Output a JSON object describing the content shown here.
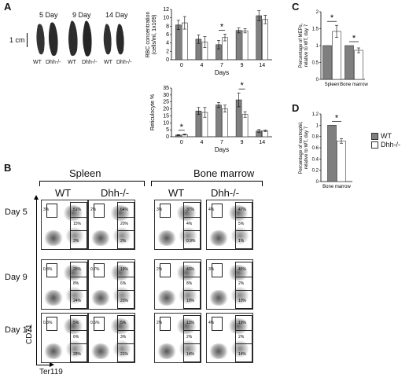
{
  "panels": [
    "A",
    "B",
    "C",
    "D"
  ],
  "spleen_photo": {
    "scale_label": "1 cm",
    "days": [
      "5 Day",
      "9 Day",
      "14 Day"
    ],
    "genotypes": [
      "WT",
      "Dhh-/-"
    ]
  },
  "chart_data": [
    {
      "id": "rbc",
      "type": "bar",
      "categories": [
        "0",
        "4",
        "7",
        "9",
        "14"
      ],
      "ylabel": "RBC concentration (cells/ml, 1x109)",
      "xlabel": "Days",
      "yticks": [
        "0",
        "2",
        "4",
        "6",
        "8",
        "10",
        "12"
      ],
      "ylim": [
        0,
        12
      ],
      "series": [
        {
          "name": "WT",
          "color": "#7f7f7f",
          "values": [
            8.3,
            4.9,
            3.6,
            7.0,
            10.5
          ],
          "err": [
            1.1,
            1.0,
            1.0,
            0.6,
            1.2
          ]
        },
        {
          "name": "Dhh-/-",
          "color": "#ffffff",
          "values": [
            8.8,
            4.2,
            5.3,
            6.9,
            9.6
          ],
          "err": [
            1.5,
            1.3,
            0.8,
            0.5,
            1.0
          ]
        }
      ],
      "significant": [
        "7"
      ],
      "marker": "*"
    },
    {
      "id": "retic",
      "type": "bar",
      "categories": [
        "0",
        "4",
        "7",
        "9",
        "14"
      ],
      "ylabel": "Reticulocyte %",
      "xlabel": "Days",
      "yticks": [
        "0",
        "5",
        "10",
        "15",
        "20",
        "25",
        "30",
        "35"
      ],
      "ylim": [
        0,
        35
      ],
      "series": [
        {
          "name": "WT",
          "color": "#7f7f7f",
          "values": [
            1.2,
            18.5,
            22.8,
            26.5,
            4.2
          ],
          "err": [
            0.3,
            2.5,
            1.8,
            5.0,
            1.0
          ]
        },
        {
          "name": "Dhh-/-",
          "color": "#ffffff",
          "values": [
            1.5,
            17.5,
            20.2,
            16.0,
            4.3
          ],
          "err": [
            0.3,
            3.5,
            2.5,
            2.0,
            0.5
          ]
        }
      ],
      "significant": [
        "0",
        "9"
      ],
      "marker": "*"
    },
    {
      "id": "mep",
      "type": "bar",
      "categories": [
        "Spleen",
        "Bone marrow"
      ],
      "ylabel": "Percentage of MEPs, relative to WT, day 7",
      "yticks": [
        "0",
        "0.5",
        "1",
        "1.5",
        "2"
      ],
      "ylim": [
        0,
        2
      ],
      "series": [
        {
          "name": "WT",
          "color": "#7f7f7f",
          "values": [
            1.0,
            1.0
          ],
          "err": [
            0,
            0
          ]
        },
        {
          "name": "Dhh-/-",
          "color": "#ffffff",
          "values": [
            1.42,
            0.86
          ],
          "err": [
            0.18,
            0.07
          ]
        }
      ],
      "significant": [
        "Spleen",
        "Bone marrow"
      ],
      "marker": "*"
    },
    {
      "id": "neut",
      "type": "bar",
      "categories": [
        "Bone marrow"
      ],
      "ylabel": "Percentage of neutrophil, relative to WT, day 7",
      "yticks": [
        "0",
        "0.2",
        "0.4",
        "0.6",
        "0.8",
        "1",
        "1.2"
      ],
      "ylim": [
        0,
        1.2
      ],
      "series": [
        {
          "name": "WT",
          "color": "#7f7f7f",
          "values": [
            1.0
          ],
          "err": [
            0
          ]
        },
        {
          "name": "Dhh-/-",
          "color": "#ffffff",
          "values": [
            0.72
          ],
          "err": [
            0.04
          ]
        }
      ],
      "significant": [
        "Bone marrow"
      ],
      "marker": "*"
    }
  ],
  "legend": {
    "wt": "WT",
    "ko": "Dhh-/-"
  },
  "flow": {
    "tissues": [
      "Spleen",
      "Bone marrow"
    ],
    "genotypes": [
      "WT",
      "Dhh-/-",
      "WT",
      "Dhh-/-"
    ],
    "days": [
      "Day 5",
      "Day 9",
      "Day 14"
    ],
    "y_axis": "CD71",
    "x_axis": "Ter119",
    "rows": [
      [
        {
          "g1": "3%",
          "g2": "51%",
          "g3": "15%",
          "g4": "2%"
        },
        {
          "g1": "2%",
          "g2": "64%",
          "g3": "20%",
          "g4": "2%"
        },
        {
          "g1": "3%",
          "g2": "37%",
          "g3": "4%",
          "g4": "0.9%"
        },
        {
          "g1": "4%",
          "g2": "47%",
          "g3": "5%",
          "g4": "1%"
        }
      ],
      [
        {
          "g1": "0.8%",
          "g2": "25%",
          "g3": "8%",
          "g4": "24%"
        },
        {
          "g1": "0.7%",
          "g2": "19%",
          "g3": "6%",
          "g4": "23%"
        },
        {
          "g1": "2%",
          "g2": "43%",
          "g3": "8%",
          "g4": "10%"
        },
        {
          "g1": "3%",
          "g2": "45%",
          "g3": "2%",
          "g4": "10%"
        }
      ],
      [
        {
          "g1": "0.8%",
          "g2": "5%",
          "g3": "6%",
          "g4": "28%"
        },
        {
          "g1": "0.5%",
          "g2": "5%",
          "g3": "3%",
          "g4": "21%"
        },
        {
          "g1": "2%",
          "g2": "13%",
          "g3": "2%",
          "g4": "14%"
        },
        {
          "g1": "4%",
          "g2": "19%",
          "g3": "2%",
          "g4": "14%"
        }
      ]
    ]
  }
}
